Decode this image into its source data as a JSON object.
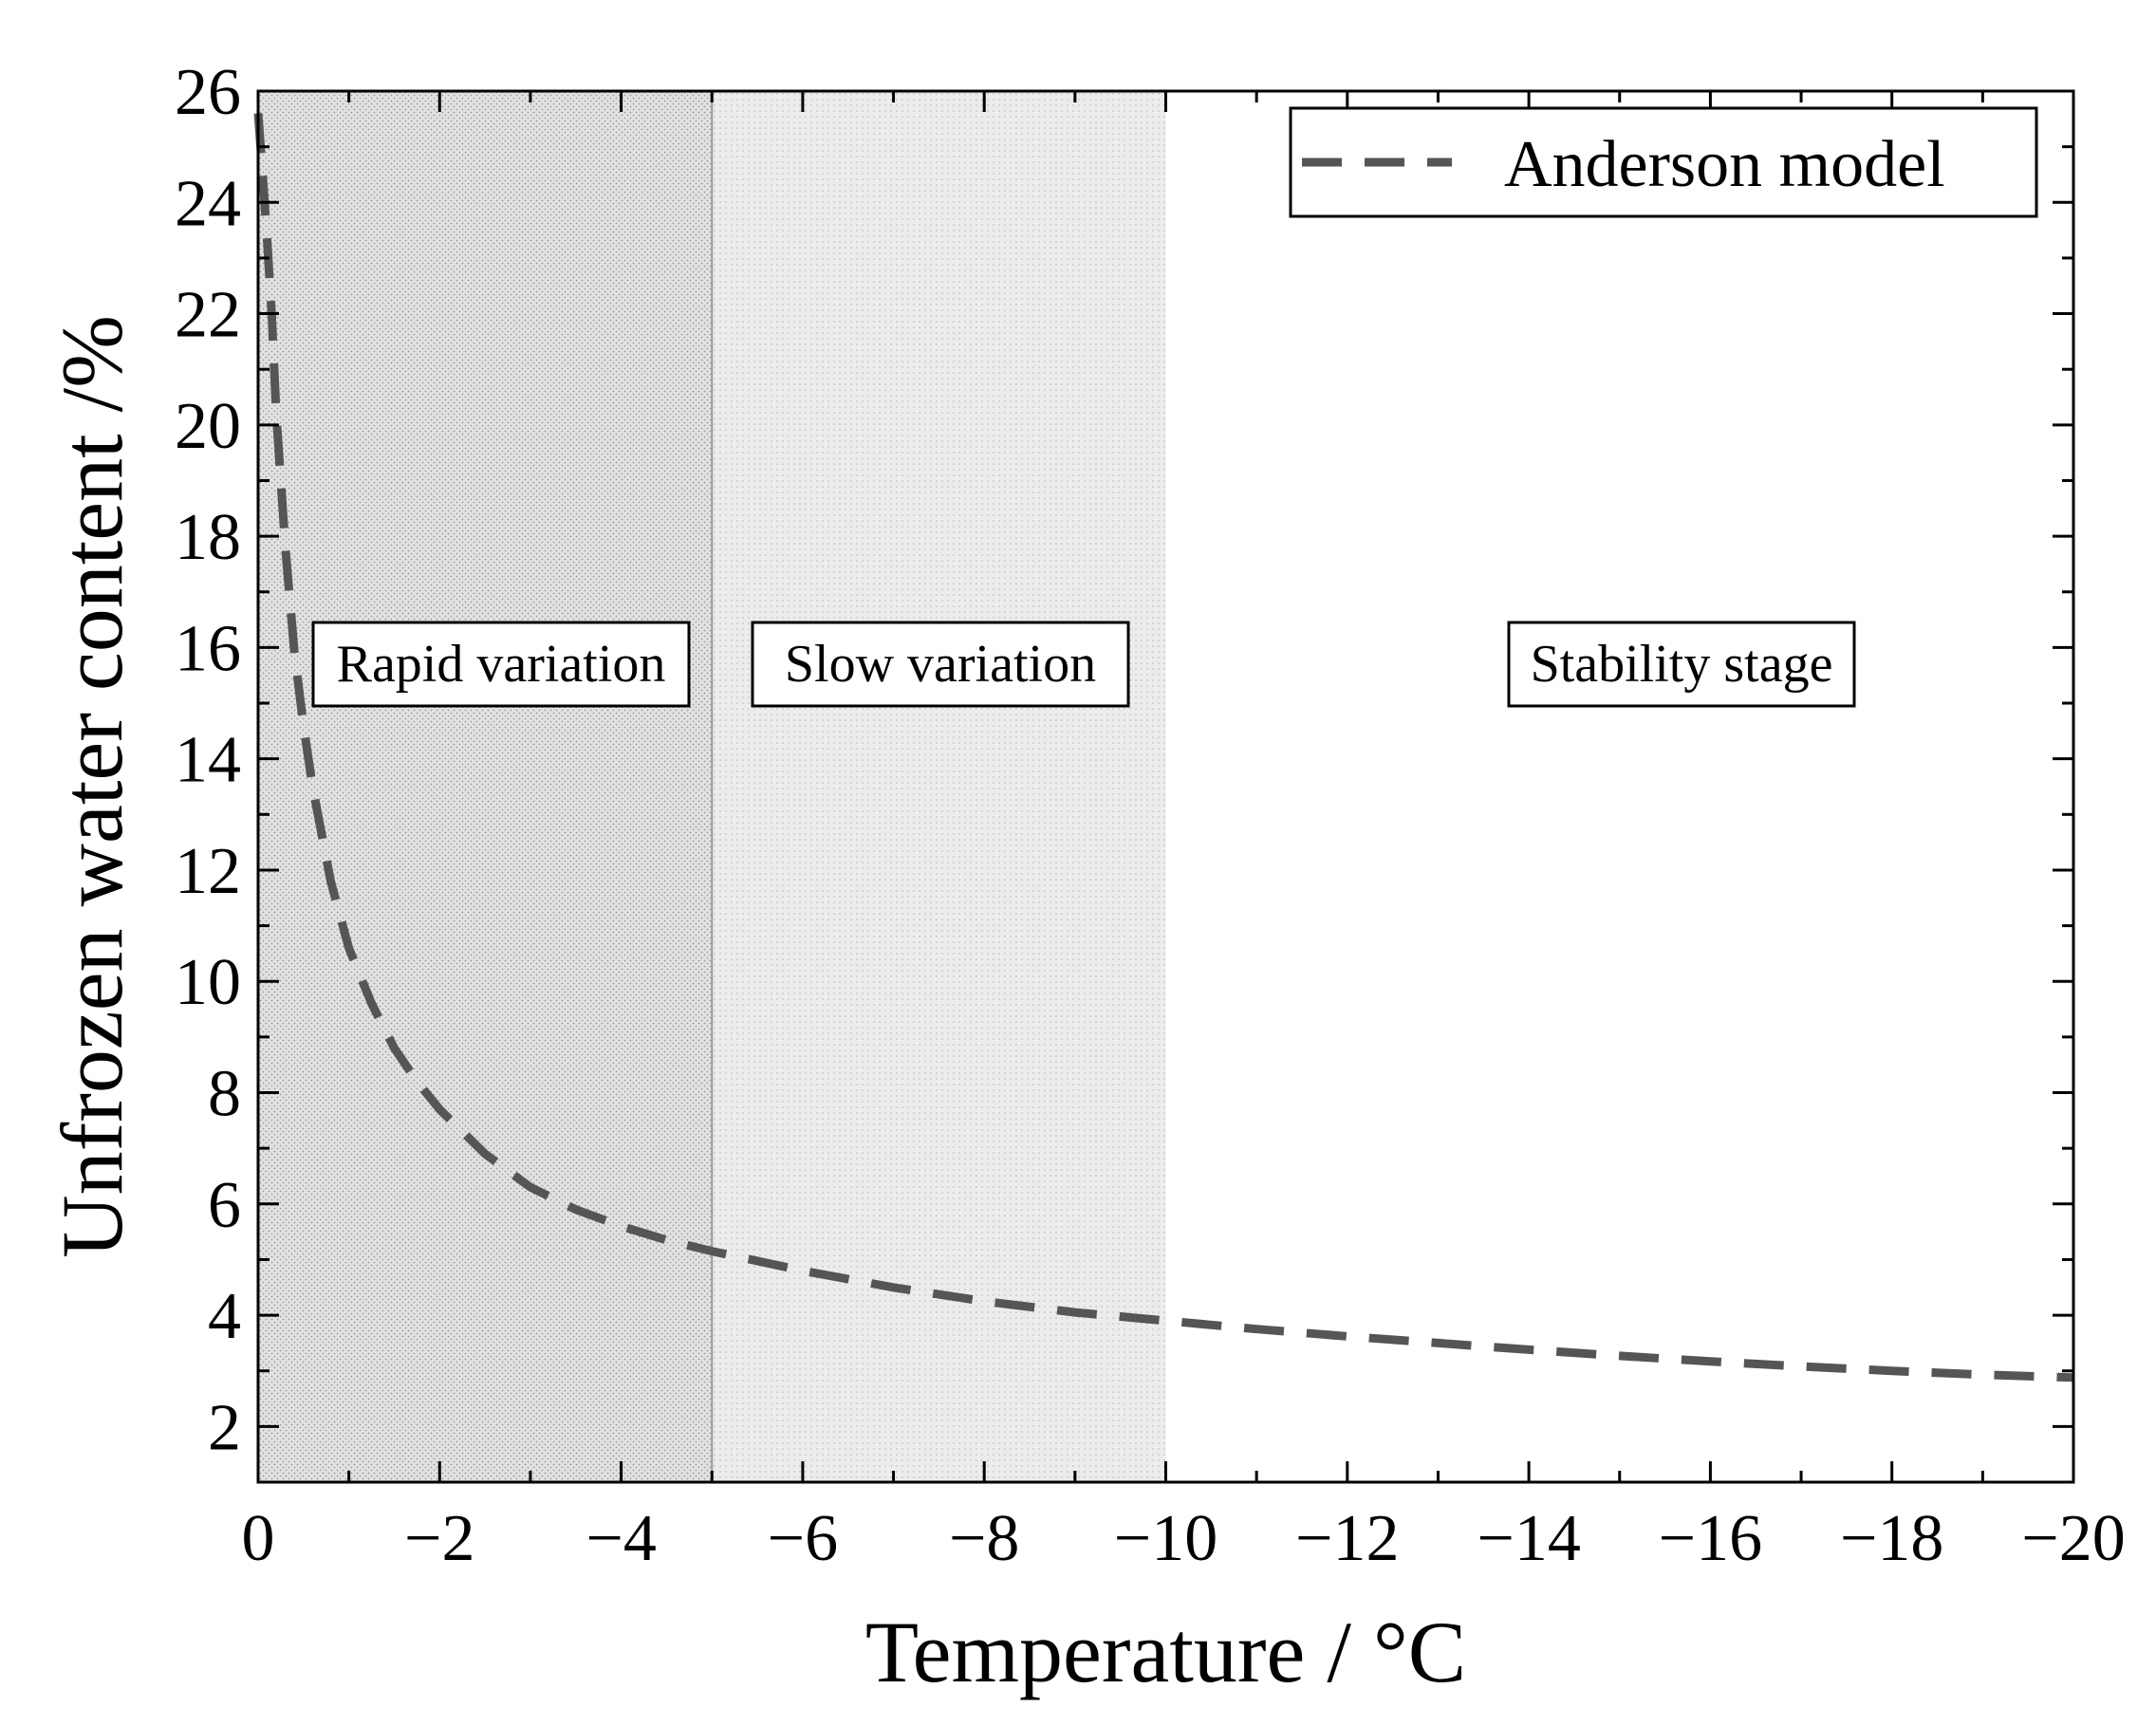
{
  "chart_data": {
    "type": "line",
    "xlabel": "Temperature / °C",
    "ylabel": "Unfrozen water content /%",
    "xlim": [
      0,
      -20
    ],
    "ylim": [
      1,
      26
    ],
    "x_ticks": [
      0,
      -2,
      -4,
      -6,
      -8,
      -10,
      -12,
      -14,
      -16,
      -18,
      -20
    ],
    "x_tick_labels": [
      "0",
      "−2",
      "−4",
      "−6",
      "−8",
      "−10",
      "−12",
      "−14",
      "−16",
      "−18",
      "−20"
    ],
    "y_ticks": [
      2,
      4,
      6,
      8,
      10,
      12,
      14,
      16,
      18,
      20,
      22,
      24,
      26
    ],
    "y_tick_labels": [
      "2",
      "4",
      "6",
      "8",
      "10",
      "12",
      "14",
      "16",
      "18",
      "20",
      "22",
      "24",
      "26"
    ],
    "series": [
      {
        "name": "Anderson model",
        "style": "dashed",
        "color": "#555555",
        "x": [
          0,
          -0.05,
          -0.1,
          -0.15,
          -0.2,
          -0.3,
          -0.4,
          -0.5,
          -0.6,
          -0.8,
          -1.0,
          -1.25,
          -1.5,
          -1.75,
          -2.0,
          -2.5,
          -3.0,
          -3.5,
          -4.0,
          -4.5,
          -5.0,
          -6.0,
          -7.0,
          -8.0,
          -9.0,
          -10.0,
          -11.0,
          -12.0,
          -13.0,
          -14.0,
          -15.0,
          -16.0,
          -17.0,
          -18.0,
          -19.0,
          -20.0
        ],
        "y": [
          25.6,
          24.5,
          23.3,
          22.0,
          20.2,
          17.8,
          15.9,
          14.6,
          13.5,
          11.8,
          10.6,
          9.6,
          8.8,
          8.2,
          7.7,
          6.9,
          6.3,
          5.9,
          5.6,
          5.35,
          5.15,
          4.8,
          4.5,
          4.25,
          4.05,
          3.9,
          3.75,
          3.62,
          3.5,
          3.38,
          3.27,
          3.17,
          3.08,
          3.0,
          2.93,
          2.88
        ]
      }
    ],
    "regions": [
      {
        "label": "Rapid variation",
        "x_range": [
          0,
          -5
        ],
        "fill": "#d9d9d9"
      },
      {
        "label": "Slow variation",
        "x_range": [
          -5,
          -10
        ],
        "fill": "#e6e6e6"
      },
      {
        "label": "Stability stage",
        "x_range": [
          -10,
          -20
        ],
        "fill": "#ffffff"
      }
    ],
    "legend": {
      "position": "top-right",
      "entries": [
        "Anderson model"
      ]
    }
  }
}
